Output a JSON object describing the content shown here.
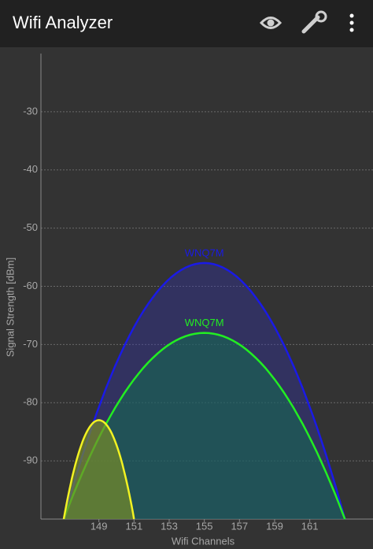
{
  "app_bar": {
    "title": "Wifi Analyzer"
  },
  "chart_data": {
    "type": "wifi-channel",
    "x_label": "Wifi Channels",
    "y_label": "Signal Strength [dBm]",
    "xlim": [
      145.7,
      164.6
    ],
    "xticks": [
      149,
      151,
      153,
      155,
      157,
      159,
      161
    ],
    "ylim": [
      -100,
      -20
    ],
    "yticks": [
      -30,
      -40,
      -50,
      -60,
      -70,
      -80,
      -90
    ],
    "grid": true,
    "series": [
      {
        "name": "WNQ7M",
        "color": "#1a1ae6",
        "fill": "rgba(50,50,170,0.38)",
        "start": 147,
        "channel": 155,
        "end": 163,
        "level": -56
      },
      {
        "name": "WNQ7M",
        "color": "#22ee22",
        "fill": "rgba(20,110,80,0.55)",
        "start": 147,
        "channel": 155,
        "end": 163,
        "level": -68
      },
      {
        "color": "#f2f222",
        "fill": "rgba(120,140,40,0.7)",
        "start": 147,
        "channel": 149,
        "end": 151,
        "level": -83
      }
    ]
  }
}
